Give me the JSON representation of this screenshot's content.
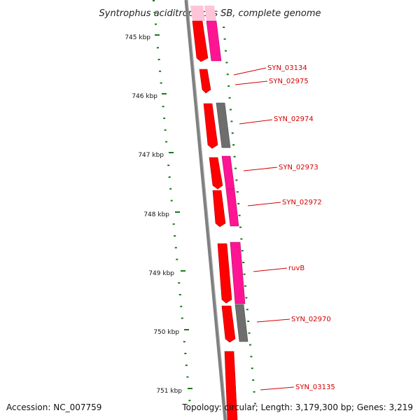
{
  "title": "Syntrophus aciditrophicus SB, complete genome",
  "scale_ticks": [
    "745 kbp",
    "746 kbp",
    "747 kbp",
    "748 kbp",
    "749 kbp",
    "750 kbp",
    "751 kbp"
  ],
  "gene_labels": [
    "SYN_03134",
    "SYN_02975",
    "SYN_02974",
    "SYN_02973",
    "SYN_02972",
    "ruvB",
    "SYN_02970",
    "SYN_03135"
  ],
  "footer": {
    "accession": "Accession: NC_007759",
    "summary": "Topology: circular; Length: 3,179,300 bp; Genes: 3,219"
  },
  "colors": {
    "gene": "#ff0000",
    "gene_dark": "#b80000",
    "cds_pink": "#ff1493",
    "cds_grey": "#6e6e6e",
    "backbone": "#808080",
    "tick": "#1a7a1a",
    "label": "#d40000"
  }
}
